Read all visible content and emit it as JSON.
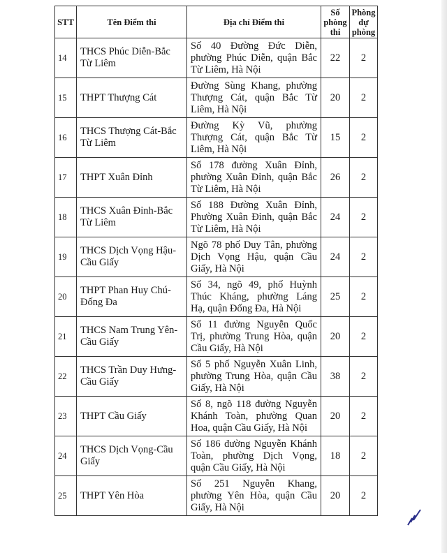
{
  "headers": {
    "stt": "STT",
    "name": "Tên Điểm thi",
    "address": "Địa chỉ Điểm thi",
    "rooms": "Số phòng thi",
    "reserve": "Phòng dự phòng"
  },
  "rows": [
    {
      "stt": "14",
      "name": "THCS Phúc Diễn-Bắc Từ Liêm",
      "address": "Số 40 Đường Đức Diễn, phường Phúc Diễn, quận Bắc Từ Liêm, Hà Nội",
      "rooms": "22",
      "reserve": "2"
    },
    {
      "stt": "15",
      "name": "THPT Thượng Cát",
      "address": "Đường Sùng Khang, phường Thượng Cát, quận Bắc Từ Liêm, Hà Nội",
      "rooms": "20",
      "reserve": "2"
    },
    {
      "stt": "16",
      "name": "THCS Thượng Cát-Bắc Từ Liêm",
      "address": "Đường Kỳ Vũ, phường Thượng Cát, quận Bắc Từ Liêm, Hà Nội",
      "rooms": "15",
      "reserve": "2"
    },
    {
      "stt": "17",
      "name": "THPT Xuân Đỉnh",
      "address": "Số 178 đường Xuân Đỉnh, phường Xuân Đỉnh, quận Bắc Từ Liêm, Hà Nội",
      "rooms": "26",
      "reserve": "2"
    },
    {
      "stt": "18",
      "name": "THCS Xuân Đỉnh-Bắc Từ Liêm",
      "address": "Số 188 Đường Xuân Đỉnh, Phường Xuân Đỉnh, quận Bắc Từ Liêm, Hà Nội",
      "rooms": "24",
      "reserve": "2"
    },
    {
      "stt": "19",
      "name": "THCS Dịch Vọng Hậu-Cầu Giấy",
      "address": "Ngõ 78 phố Duy Tân, phường Dịch Vọng Hậu, quận Cầu Giấy, Hà Nội",
      "rooms": "24",
      "reserve": "2"
    },
    {
      "stt": "20",
      "name": "THPT Phan Huy Chú-Đống Đa",
      "address": "Số 34, ngõ 49, phố Huỳnh Thúc Kháng, phường Láng Hạ, quận Đống Đa, Hà Nội",
      "rooms": "25",
      "reserve": "2"
    },
    {
      "stt": "21",
      "name": "THCS Nam Trung Yên-Cầu Giấy",
      "address": "Số 11 đường Nguyễn Quốc Trị, phường Trung Hòa, quận Cầu Giấy, Hà Nội",
      "rooms": "20",
      "reserve": "2"
    },
    {
      "stt": "22",
      "name": "THCS Trần Duy Hưng-Cầu Giấy",
      "address": "Số 5 phố Nguyễn Xuân Linh, phường Trung Hòa, quận Cầu Giấy, Hà Nội",
      "rooms": "38",
      "reserve": "2"
    },
    {
      "stt": "23",
      "name": "THPT Cầu Giấy",
      "address": "Số 8, ngõ 118 đường Nguyễn Khánh Toàn, phường Quan Hoa, quận Cầu Giấy, Hà Nội",
      "rooms": "20",
      "reserve": "2"
    },
    {
      "stt": "24",
      "name": "THCS Dịch Vọng-Cầu Giấy",
      "address": "Số 186 đường Nguyễn Khánh Toàn, phường Dịch Vọng, quận Cầu Giấy, Hà Nội",
      "rooms": "18",
      "reserve": "2"
    },
    {
      "stt": "25",
      "name": "THPT Yên Hòa",
      "address": "Số 251 Nguyễn Khang, phường Yên Hòa, quận Cầu Giấy, Hà Nội",
      "rooms": "20",
      "reserve": "2"
    }
  ],
  "colors": {
    "ink": "#1a1a1a",
    "signature": "#2b2f8a"
  }
}
